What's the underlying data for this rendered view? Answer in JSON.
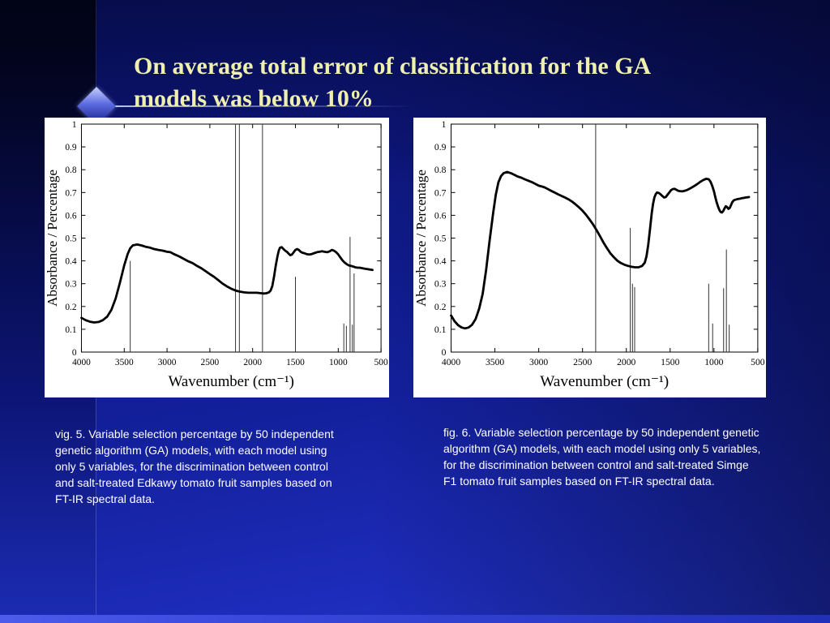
{
  "slide": {
    "title": "On average total error of classification for the GA models was below 10%"
  },
  "colors": {
    "title_color": "#efefb0",
    "background_accent": "#1d2cba",
    "panel_background": "#ffffff",
    "caption_color": "#ffffff"
  },
  "figures": [
    {
      "caption": "vig. 5. Variable selection percentage by 50 independent genetic algorithm (GA) models, with each model using only 5 variables, for the discrimination between control and salt-treated Edkawy tomato fruit samples based on FT-IR spectral data."
    },
    {
      "caption": "fig. 6. Variable selection percentage by 50 independent genetic algorithm (GA) models, with each model using only 5 variables, for the discrimination between control and salt-treated Simge F1 tomato fruit samples based on FT-IR spectral data."
    }
  ],
  "chart_data": [
    {
      "type": "line",
      "title": "",
      "xlabel": "Wavenumber (cm⁻¹)",
      "ylabel": "Absorbance / Percentage",
      "xlim": [
        4000,
        500
      ],
      "ylim": [
        0,
        1
      ],
      "xticks": [
        4000,
        3500,
        3000,
        2500,
        2000,
        1500,
        1000,
        500
      ],
      "yticks": [
        0,
        0.1,
        0.2,
        0.3,
        0.4,
        0.5,
        0.6,
        0.7,
        0.8,
        0.9,
        1
      ],
      "grid": false,
      "legend": "none",
      "selection_lines": [
        {
          "x": 3430,
          "height": 0.4
        },
        {
          "x": 2200,
          "height": 1.0
        },
        {
          "x": 2155,
          "height": 1.0
        },
        {
          "x": 1885,
          "height": 1.0
        },
        {
          "x": 1500,
          "height": 0.33
        },
        {
          "x": 935,
          "height": 0.125
        },
        {
          "x": 905,
          "height": 0.115
        },
        {
          "x": 862,
          "height": 0.505
        },
        {
          "x": 835,
          "height": 0.12
        },
        {
          "x": 815,
          "height": 0.345
        }
      ],
      "series": [
        {
          "name": "FT-IR spectrum (Edkawy)",
          "points": [
            [
              4000,
              0.15
            ],
            [
              3950,
              0.14
            ],
            [
              3900,
              0.133
            ],
            [
              3850,
              0.13
            ],
            [
              3800,
              0.132
            ],
            [
              3750,
              0.14
            ],
            [
              3700,
              0.155
            ],
            [
              3650,
              0.185
            ],
            [
              3600,
              0.235
            ],
            [
              3550,
              0.305
            ],
            [
              3500,
              0.38
            ],
            [
              3460,
              0.43
            ],
            [
              3430,
              0.455
            ],
            [
              3400,
              0.468
            ],
            [
              3350,
              0.472
            ],
            [
              3300,
              0.468
            ],
            [
              3250,
              0.462
            ],
            [
              3200,
              0.458
            ],
            [
              3150,
              0.452
            ],
            [
              3100,
              0.448
            ],
            [
              3050,
              0.445
            ],
            [
              3000,
              0.44
            ],
            [
              2960,
              0.438
            ],
            [
              2920,
              0.43
            ],
            [
              2850,
              0.418
            ],
            [
              2800,
              0.408
            ],
            [
              2750,
              0.398
            ],
            [
              2700,
              0.39
            ],
            [
              2650,
              0.378
            ],
            [
              2600,
              0.368
            ],
            [
              2550,
              0.355
            ],
            [
              2500,
              0.342
            ],
            [
              2450,
              0.33
            ],
            [
              2400,
              0.315
            ],
            [
              2350,
              0.3
            ],
            [
              2300,
              0.288
            ],
            [
              2250,
              0.278
            ],
            [
              2200,
              0.27
            ],
            [
              2150,
              0.265
            ],
            [
              2100,
              0.262
            ],
            [
              2050,
              0.26
            ],
            [
              2000,
              0.26
            ],
            [
              1950,
              0.26
            ],
            [
              1900,
              0.258
            ],
            [
              1870,
              0.257
            ],
            [
              1840,
              0.258
            ],
            [
              1810,
              0.262
            ],
            [
              1790,
              0.27
            ],
            [
              1770,
              0.29
            ],
            [
              1750,
              0.33
            ],
            [
              1730,
              0.38
            ],
            [
              1710,
              0.42
            ],
            [
              1695,
              0.445
            ],
            [
              1680,
              0.458
            ],
            [
              1660,
              0.46
            ],
            [
              1640,
              0.452
            ],
            [
              1620,
              0.445
            ],
            [
              1600,
              0.44
            ],
            [
              1580,
              0.432
            ],
            [
              1560,
              0.425
            ],
            [
              1540,
              0.428
            ],
            [
              1520,
              0.438
            ],
            [
              1500,
              0.448
            ],
            [
              1480,
              0.452
            ],
            [
              1460,
              0.448
            ],
            [
              1440,
              0.44
            ],
            [
              1420,
              0.436
            ],
            [
              1400,
              0.434
            ],
            [
              1370,
              0.43
            ],
            [
              1340,
              0.428
            ],
            [
              1310,
              0.43
            ],
            [
              1280,
              0.434
            ],
            [
              1250,
              0.438
            ],
            [
              1220,
              0.44
            ],
            [
              1190,
              0.442
            ],
            [
              1160,
              0.44
            ],
            [
              1130,
              0.438
            ],
            [
              1100,
              0.442
            ],
            [
              1075,
              0.448
            ],
            [
              1050,
              0.445
            ],
            [
              1025,
              0.438
            ],
            [
              1000,
              0.428
            ],
            [
              975,
              0.415
            ],
            [
              950,
              0.402
            ],
            [
              925,
              0.392
            ],
            [
              900,
              0.385
            ],
            [
              875,
              0.38
            ],
            [
              850,
              0.378
            ],
            [
              825,
              0.375
            ],
            [
              800,
              0.372
            ],
            [
              775,
              0.37
            ],
            [
              750,
              0.37
            ],
            [
              720,
              0.368
            ],
            [
              690,
              0.366
            ],
            [
              660,
              0.364
            ],
            [
              630,
              0.362
            ],
            [
              600,
              0.36
            ]
          ]
        }
      ]
    },
    {
      "type": "line",
      "title": "",
      "xlabel": "Wavenumber (cm⁻¹)",
      "ylabel": "Absorbance / Percentage",
      "xlim": [
        4000,
        500
      ],
      "ylim": [
        0,
        1
      ],
      "xticks": [
        4000,
        3500,
        3000,
        2500,
        2000,
        1500,
        1000,
        500
      ],
      "yticks": [
        0,
        0.1,
        0.2,
        0.3,
        0.4,
        0.5,
        0.6,
        0.7,
        0.8,
        0.9,
        1
      ],
      "grid": false,
      "legend": "none",
      "selection_lines": [
        {
          "x": 2350,
          "height": 1.0
        },
        {
          "x": 1955,
          "height": 0.545
        },
        {
          "x": 1930,
          "height": 0.3
        },
        {
          "x": 1905,
          "height": 0.285
        },
        {
          "x": 1060,
          "height": 0.3
        },
        {
          "x": 1015,
          "height": 0.125
        },
        {
          "x": 890,
          "height": 0.28
        },
        {
          "x": 858,
          "height": 0.45
        },
        {
          "x": 826,
          "height": 0.12
        }
      ],
      "series": [
        {
          "name": "FT-IR spectrum (Simge F1)",
          "points": [
            [
              4000,
              0.16
            ],
            [
              3960,
              0.135
            ],
            [
              3920,
              0.118
            ],
            [
              3880,
              0.108
            ],
            [
              3840,
              0.104
            ],
            [
              3800,
              0.108
            ],
            [
              3760,
              0.12
            ],
            [
              3720,
              0.145
            ],
            [
              3680,
              0.19
            ],
            [
              3640,
              0.255
            ],
            [
              3600,
              0.36
            ],
            [
              3560,
              0.49
            ],
            [
              3520,
              0.61
            ],
            [
              3490,
              0.69
            ],
            [
              3460,
              0.745
            ],
            [
              3430,
              0.772
            ],
            [
              3400,
              0.785
            ],
            [
              3360,
              0.79
            ],
            [
              3320,
              0.785
            ],
            [
              3280,
              0.778
            ],
            [
              3240,
              0.77
            ],
            [
              3200,
              0.765
            ],
            [
              3160,
              0.758
            ],
            [
              3120,
              0.752
            ],
            [
              3080,
              0.746
            ],
            [
              3040,
              0.738
            ],
            [
              3000,
              0.73
            ],
            [
              2960,
              0.726
            ],
            [
              2930,
              0.722
            ],
            [
              2900,
              0.716
            ],
            [
              2860,
              0.708
            ],
            [
              2820,
              0.7
            ],
            [
              2780,
              0.692
            ],
            [
              2740,
              0.685
            ],
            [
              2700,
              0.678
            ],
            [
              2660,
              0.67
            ],
            [
              2620,
              0.66
            ],
            [
              2580,
              0.648
            ],
            [
              2540,
              0.635
            ],
            [
              2500,
              0.62
            ],
            [
              2460,
              0.602
            ],
            [
              2420,
              0.582
            ],
            [
              2380,
              0.56
            ],
            [
              2340,
              0.535
            ],
            [
              2300,
              0.508
            ],
            [
              2260,
              0.48
            ],
            [
              2220,
              0.455
            ],
            [
              2180,
              0.432
            ],
            [
              2140,
              0.415
            ],
            [
              2100,
              0.4
            ],
            [
              2060,
              0.39
            ],
            [
              2020,
              0.383
            ],
            [
              1980,
              0.378
            ],
            [
              1940,
              0.374
            ],
            [
              1900,
              0.372
            ],
            [
              1860,
              0.372
            ],
            [
              1820,
              0.378
            ],
            [
              1790,
              0.392
            ],
            [
              1770,
              0.42
            ],
            [
              1750,
              0.47
            ],
            [
              1730,
              0.54
            ],
            [
              1710,
              0.61
            ],
            [
              1695,
              0.65
            ],
            [
              1680,
              0.678
            ],
            [
              1665,
              0.692
            ],
            [
              1650,
              0.7
            ],
            [
              1630,
              0.698
            ],
            [
              1610,
              0.692
            ],
            [
              1590,
              0.685
            ],
            [
              1570,
              0.678
            ],
            [
              1550,
              0.68
            ],
            [
              1530,
              0.69
            ],
            [
              1510,
              0.7
            ],
            [
              1490,
              0.71
            ],
            [
              1470,
              0.715
            ],
            [
              1450,
              0.716
            ],
            [
              1430,
              0.712
            ],
            [
              1410,
              0.708
            ],
            [
              1390,
              0.706
            ],
            [
              1360,
              0.705
            ],
            [
              1330,
              0.708
            ],
            [
              1300,
              0.712
            ],
            [
              1270,
              0.718
            ],
            [
              1240,
              0.725
            ],
            [
              1210,
              0.732
            ],
            [
              1180,
              0.74
            ],
            [
              1150,
              0.748
            ],
            [
              1120,
              0.755
            ],
            [
              1090,
              0.76
            ],
            [
              1060,
              0.758
            ],
            [
              1040,
              0.748
            ],
            [
              1020,
              0.73
            ],
            [
              1000,
              0.705
            ],
            [
              985,
              0.68
            ],
            [
              970,
              0.658
            ],
            [
              955,
              0.64
            ],
            [
              940,
              0.625
            ],
            [
              925,
              0.615
            ],
            [
              910,
              0.612
            ],
            [
              895,
              0.618
            ],
            [
              880,
              0.63
            ],
            [
              865,
              0.64
            ],
            [
              850,
              0.636
            ],
            [
              835,
              0.628
            ],
            [
              820,
              0.632
            ],
            [
              805,
              0.645
            ],
            [
              790,
              0.658
            ],
            [
              775,
              0.665
            ],
            [
              760,
              0.668
            ],
            [
              740,
              0.67
            ],
            [
              720,
              0.672
            ],
            [
              700,
              0.673
            ],
            [
              680,
              0.675
            ],
            [
              660,
              0.676
            ],
            [
              640,
              0.678
            ],
            [
              620,
              0.679
            ],
            [
              600,
              0.68
            ]
          ]
        }
      ]
    }
  ]
}
